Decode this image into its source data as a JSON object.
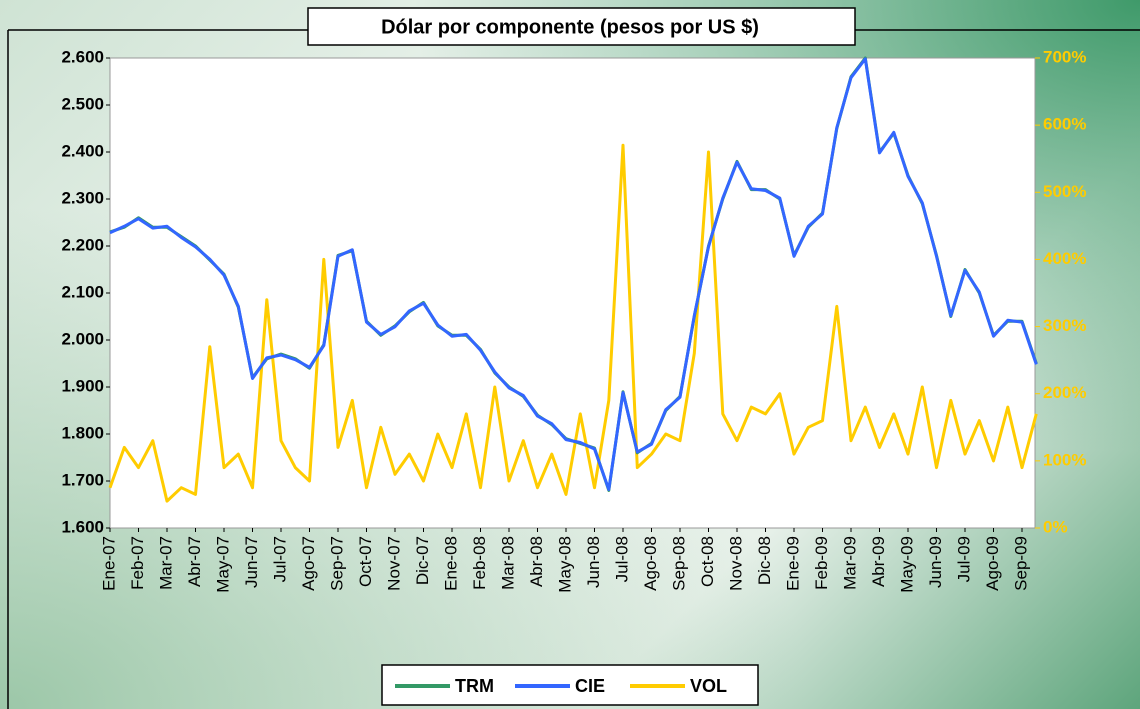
{
  "chart_data": {
    "type": "line",
    "title": "Dólar por componente (pesos por US $)",
    "categories": [
      "Ene-07",
      null,
      "Feb-07",
      null,
      "Mar-07",
      null,
      "Abr-07",
      null,
      "May-07",
      null,
      "Jun-07",
      null,
      "Jul-07",
      null,
      "Ago-07",
      null,
      "Sep-07",
      null,
      "Oct-07",
      null,
      "Nov-07",
      null,
      "Dic-07",
      null,
      "Ene-08",
      null,
      "Feb-08",
      null,
      "Mar-08",
      null,
      "Abr-08",
      null,
      "May-08",
      null,
      "Jun-08",
      null,
      "Jul-08",
      null,
      "Ago-08",
      null,
      "Sep-08",
      null,
      "Oct-08",
      null,
      "Nov-08",
      null,
      "Dic-08",
      null,
      "Ene-09",
      null,
      "Feb-09",
      null,
      "Mar-09",
      null,
      "Abr-09",
      null,
      "May-09",
      null,
      "Jun-09",
      null,
      "Jul-09",
      null,
      "Ago-09",
      null,
      "Sep-09",
      null
    ],
    "series": [
      {
        "name": "TRM",
        "color": "#339966",
        "values": [
          2230,
          2240,
          2260,
          2240,
          2240,
          2220,
          2200,
          2170,
          2140,
          2070,
          1920,
          1960,
          1970,
          1960,
          1940,
          1990,
          2180,
          2190,
          2040,
          2010,
          2030,
          2060,
          2080,
          2030,
          2010,
          2010,
          1980,
          1930,
          1900,
          1880,
          1840,
          1820,
          1790,
          1780,
          1770,
          1680,
          1890,
          1760,
          1780,
          1850,
          1880,
          2050,
          2200,
          2300,
          2380,
          2320,
          2320,
          2300,
          2180,
          2240,
          2270,
          2450,
          2560,
          2600,
          2400,
          2440,
          2350,
          2290,
          2180,
          2050,
          2150,
          2100,
          2010,
          2040,
          2040,
          1950
        ]
      },
      {
        "name": "CIE",
        "color": "#3366ff",
        "values": [
          2228,
          2242,
          2258,
          2238,
          2242,
          2218,
          2198,
          2172,
          2138,
          2072,
          1918,
          1962,
          1968,
          1958,
          1942,
          1988,
          2178,
          2192,
          2038,
          2012,
          2028,
          2062,
          2078,
          2032,
          2008,
          2012,
          1978,
          1932,
          1898,
          1882,
          1838,
          1822,
          1788,
          1782,
          1768,
          1682,
          1888,
          1762,
          1778,
          1852,
          1878,
          2052,
          2198,
          2302,
          2378,
          2322,
          2318,
          2302,
          2178,
          2242,
          2268,
          2452,
          2558,
          2598,
          2398,
          2442,
          2348,
          2292,
          2178,
          2052,
          2148,
          2102,
          2008,
          2042,
          2038,
          1948
        ]
      },
      {
        "name": "VOL",
        "color": "#ffcc00",
        "axis": "y2",
        "values": [
          60,
          120,
          90,
          130,
          40,
          60,
          50,
          270,
          90,
          110,
          60,
          340,
          130,
          90,
          70,
          400,
          120,
          190,
          60,
          150,
          80,
          110,
          70,
          140,
          90,
          170,
          60,
          210,
          70,
          130,
          60,
          110,
          50,
          170,
          60,
          190,
          570,
          90,
          110,
          140,
          130,
          260,
          560,
          170,
          130,
          180,
          170,
          200,
          110,
          150,
          160,
          330,
          130,
          180,
          120,
          170,
          110,
          210,
          90,
          190,
          110,
          160,
          100,
          180,
          90,
          170
        ]
      }
    ],
    "ylim": [
      1600,
      2600
    ],
    "yticks": [
      {
        "value": 1600,
        "label": "1.600"
      },
      {
        "value": 1700,
        "label": "1.700"
      },
      {
        "value": 1800,
        "label": "1.800"
      },
      {
        "value": 1900,
        "label": "1.900"
      },
      {
        "value": 2000,
        "label": "2.000"
      },
      {
        "value": 2100,
        "label": "2.100"
      },
      {
        "value": 2200,
        "label": "2.200"
      },
      {
        "value": 2300,
        "label": "2.300"
      },
      {
        "value": 2400,
        "label": "2.400"
      },
      {
        "value": 2500,
        "label": "2.500"
      },
      {
        "value": 2600,
        "label": "2.600"
      }
    ],
    "y2lim": [
      0,
      700
    ],
    "y2ticks": [
      {
        "value": 0,
        "label": "0%"
      },
      {
        "value": 100,
        "label": "100%"
      },
      {
        "value": 200,
        "label": "200%"
      },
      {
        "value": 300,
        "label": "300%"
      },
      {
        "value": 400,
        "label": "400%"
      },
      {
        "value": 500,
        "label": "500%"
      },
      {
        "value": 600,
        "label": "600%"
      },
      {
        "value": 700,
        "label": "700%"
      }
    ],
    "legend": "bottom"
  }
}
